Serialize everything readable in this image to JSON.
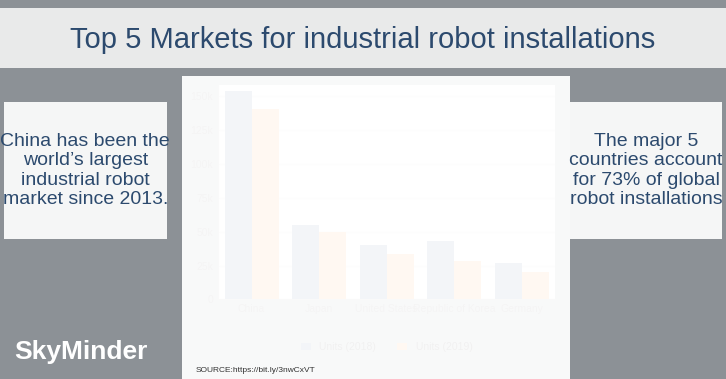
{
  "chart_data": {
    "type": "bar",
    "title": "Top 5 Markets for industrial robot installations",
    "annotations": [
      "China has been the world’s largest industrial robot market since 2013.",
      "The major 5 countries account for 73% of global robot installations",
      "SkyMinder",
      "SOURCE:https://bit.ly/3nwCxVT"
    ],
    "categories": [
      "China",
      "Japan",
      "United States",
      "Republic of Korea",
      "Germany"
    ],
    "series": [
      {
        "name": "Units (2018)",
        "color": "#34557f",
        "values": [
          154000,
          55000,
          40500,
          43000,
          26500
        ]
      },
      {
        "name": "Units (2019)",
        "color": "#ff8c1a",
        "values": [
          140500,
          50000,
          33500,
          28000,
          20500
        ]
      }
    ],
    "ylim": [
      0,
      158000
    ],
    "yticks": [
      0,
      {
        "value": 25000,
        "label": "25k"
      },
      {
        "value": 50000,
        "label": "50k"
      },
      {
        "value": 75000,
        "label": "75k"
      },
      {
        "value": 100000,
        "label": "100k"
      },
      {
        "value": 125000,
        "label": "125k"
      },
      {
        "value": 150000,
        "label": "150k"
      }
    ],
    "grid": true,
    "legend": "lower center"
  }
}
